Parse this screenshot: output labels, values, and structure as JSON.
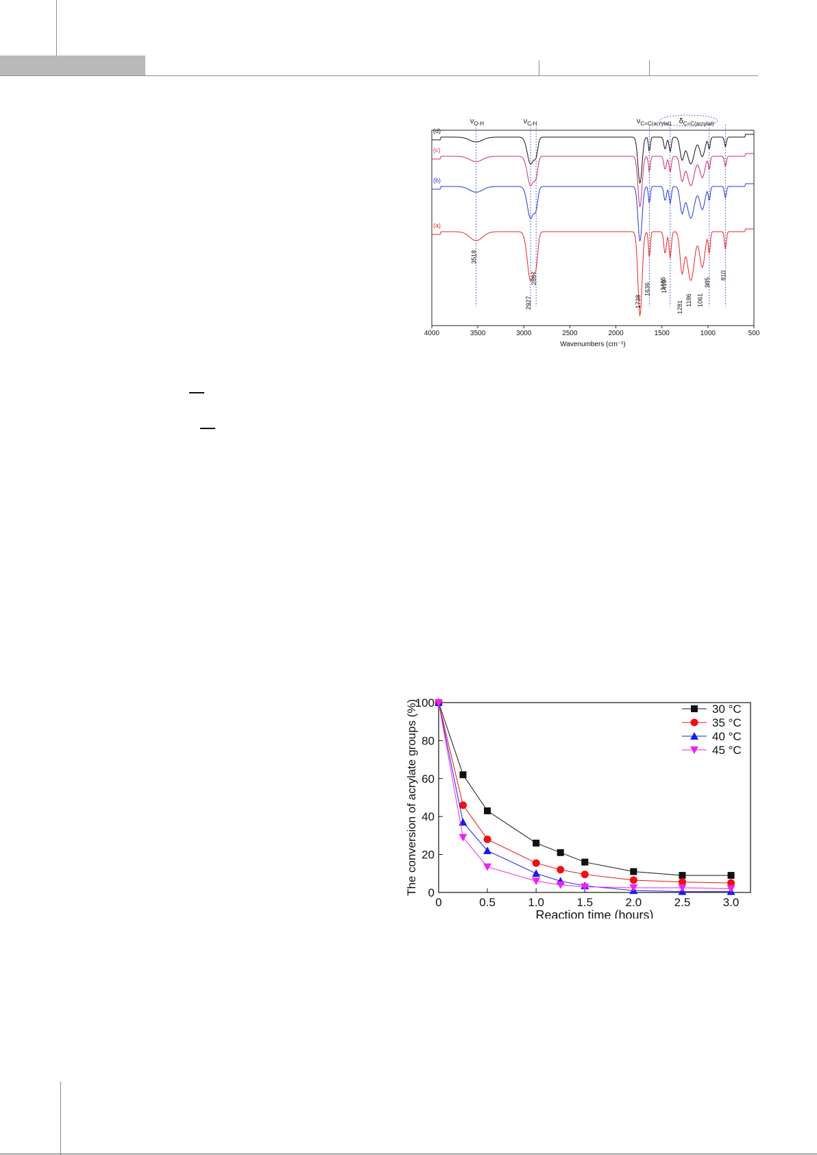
{
  "chart_data": [
    {
      "type": "line",
      "xlabel": "Wavenumbers (cm⁻¹)",
      "ylabel": "",
      "xlim": [
        4000,
        500
      ],
      "x_ticks": [
        "4000",
        "3500",
        "3000",
        "2500",
        "2000",
        "1500",
        "1000",
        "500"
      ],
      "series": [
        {
          "name": "(d)",
          "color": "#111111"
        },
        {
          "name": "(c)",
          "color": "#cc2a6c"
        },
        {
          "name": "(b)",
          "color": "#2233dd"
        },
        {
          "name": "(a)",
          "color": "#ee2020"
        }
      ],
      "band_labels": [
        {
          "text": "ν",
          "sub": "O-H",
          "x": 3480
        },
        {
          "text": "ν",
          "sub": "C-H",
          "x": 2900
        },
        {
          "text": "ν",
          "sub": "C=C(acrylat)",
          "x": 1670
        },
        {
          "text": "δ",
          "sub": "C=C(acrylat)",
          "x": 1210
        }
      ],
      "peak_labels": [
        "3518",
        "2927",
        "2867",
        "1738",
        "1636",
        "1410",
        "1465",
        "1281",
        "1186",
        "1061",
        "985",
        "810"
      ],
      "peak_positions": [
        3518,
        2927,
        2867,
        1738,
        1636,
        1410,
        1465,
        1281,
        1186,
        1061,
        985,
        810
      ],
      "reference_lines": [
        3518,
        2927,
        2867,
        1636,
        1410,
        985,
        810
      ]
    },
    {
      "type": "line",
      "xlabel": "Reaction time (hours)",
      "ylabel": "The conversion of acrylate groups (%)",
      "xlim": [
        0,
        3.2
      ],
      "ylim": [
        0,
        100
      ],
      "x_ticks": [
        "0",
        "0.5",
        "1.0",
        "1.5",
        "2.0",
        "2.5",
        "3.0"
      ],
      "y_ticks": [
        "0",
        "20",
        "40",
        "60",
        "80",
        "100"
      ],
      "legend_position": "top-right",
      "x": [
        0,
        0.25,
        0.5,
        1.0,
        1.25,
        1.5,
        2.0,
        2.5,
        3.0
      ],
      "series": [
        {
          "name": "30 °C",
          "color": "#111111",
          "marker": "square",
          "values": [
            100,
            62,
            43,
            26,
            21,
            16,
            11,
            9,
            9
          ]
        },
        {
          "name": "35 °C",
          "color": "#ee1111",
          "marker": "circle",
          "values": [
            100,
            46,
            28,
            15.5,
            12,
            9.5,
            6.5,
            5.5,
            5
          ]
        },
        {
          "name": "40 °C",
          "color": "#1a1aee",
          "marker": "triangle-up",
          "values": [
            100,
            37,
            22,
            10,
            6,
            3.5,
            1,
            0.5,
            0.5
          ]
        },
        {
          "name": "45 °C",
          "color": "#ee22ee",
          "marker": "triangle-down",
          "values": [
            100,
            29,
            13.5,
            6,
            4,
            3,
            2.5,
            2.5,
            2
          ]
        }
      ]
    }
  ]
}
